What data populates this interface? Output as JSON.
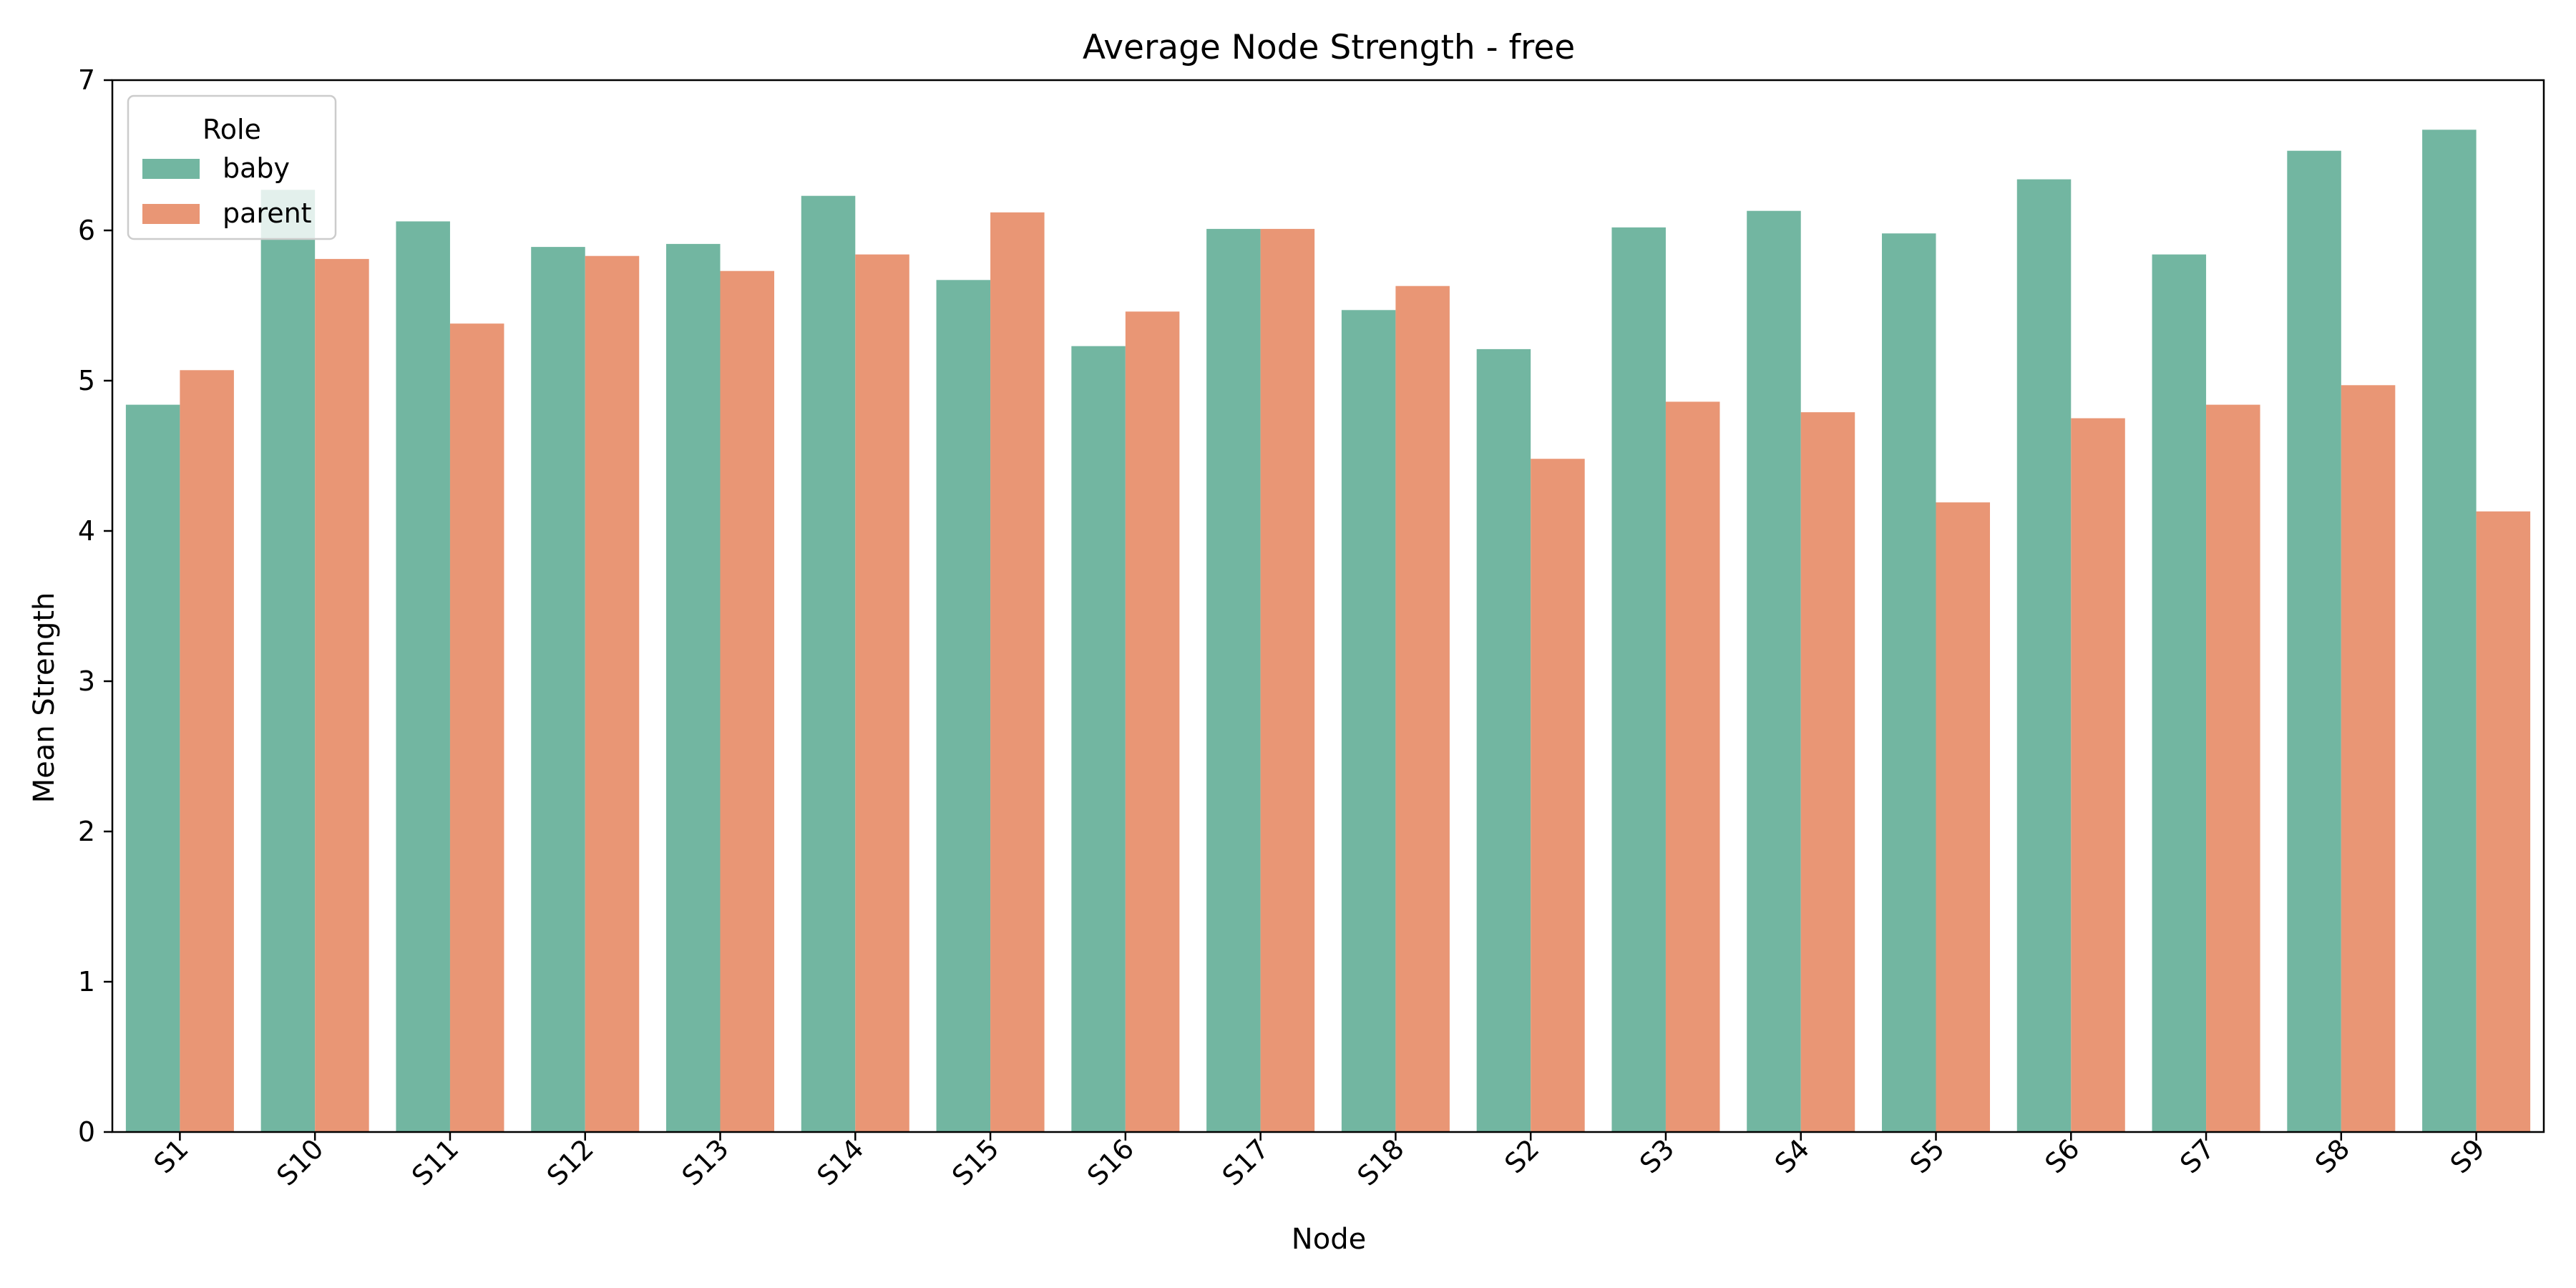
{
  "chart_data": {
    "type": "bar",
    "title": "Average Node Strength - free",
    "xlabel": "Node",
    "ylabel": "Mean Strength",
    "ylim": [
      0,
      7
    ],
    "yticks": [
      "0",
      "1",
      "2",
      "3",
      "4",
      "5",
      "6",
      "7"
    ],
    "categories": [
      "S1",
      "S10",
      "S11",
      "S12",
      "S13",
      "S14",
      "S15",
      "S16",
      "S17",
      "S18",
      "S2",
      "S3",
      "S4",
      "S5",
      "S6",
      "S7",
      "S8",
      "S9"
    ],
    "legend": {
      "title": "Role",
      "position": "top-left"
    },
    "grid": false,
    "series": [
      {
        "name": "baby",
        "color": "#72b6a1",
        "values": [
          4.84,
          6.27,
          6.06,
          5.89,
          5.91,
          6.23,
          5.67,
          5.23,
          6.01,
          5.47,
          5.21,
          6.02,
          6.13,
          5.98,
          6.34,
          5.84,
          6.53,
          6.67
        ]
      },
      {
        "name": "parent",
        "color": "#e99675",
        "values": [
          5.07,
          5.81,
          5.38,
          5.83,
          5.73,
          5.84,
          6.12,
          5.46,
          6.01,
          5.63,
          4.48,
          4.86,
          4.79,
          4.19,
          4.75,
          4.84,
          4.97,
          4.13
        ]
      }
    ]
  }
}
